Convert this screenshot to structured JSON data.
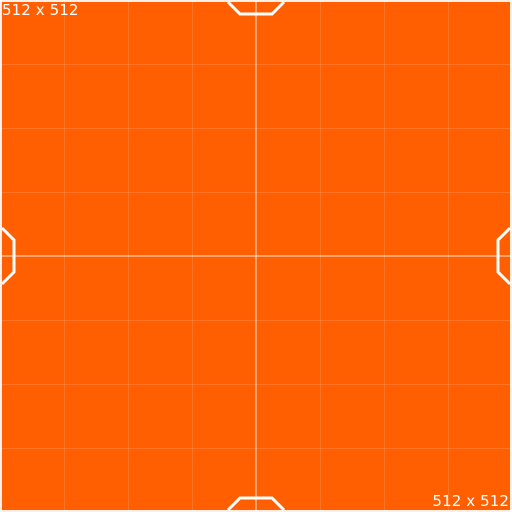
{
  "texture": {
    "background_color": "#ff5f00",
    "line_color": "#ffffff",
    "label_top_left": "512 x 512",
    "label_bottom_right": "512 x 512"
  }
}
